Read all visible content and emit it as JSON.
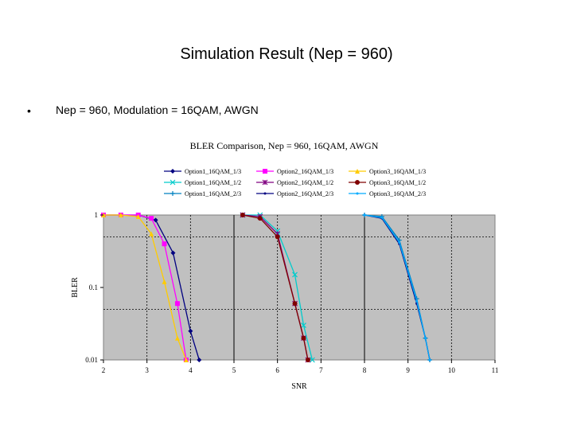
{
  "slide": {
    "title": "Simulation Result (Nep = 960)",
    "bullet_marker": "•",
    "bullet_text": "Nep = 960, Modulation = 16QAM, AWGN"
  },
  "chart_data": {
    "type": "line",
    "title": "BLER Comparison, Nep = 960, 16QAM, AWGN",
    "xlabel": "SNR",
    "ylabel": "BLER",
    "xlim": [
      2,
      11
    ],
    "ylim": [
      0.01,
      1
    ],
    "yscale": "log",
    "xticks": [
      "2",
      "3",
      "4",
      "5",
      "6",
      "7",
      "8",
      "9",
      "10",
      "11"
    ],
    "yticks": [
      "1",
      "0.1",
      "0.01"
    ],
    "grid": true,
    "background_color": "#c0c0c0",
    "legend_position": "top",
    "series": [
      {
        "name": "Option1_16QAM_1/3",
        "color": "#000080",
        "marker": "diamond",
        "x": [
          2.0,
          2.4,
          2.8,
          3.2,
          3.6,
          4.0,
          4.2
        ],
        "y": [
          1.0,
          1.0,
          1.0,
          0.85,
          0.3,
          0.025,
          0.01
        ]
      },
      {
        "name": "Option2_16QAM_1/3",
        "color": "#ff00ff",
        "marker": "square",
        "x": [
          2.0,
          2.4,
          2.8,
          3.1,
          3.4,
          3.7,
          3.9
        ],
        "y": [
          1.0,
          1.0,
          1.0,
          0.9,
          0.4,
          0.06,
          0.01
        ]
      },
      {
        "name": "Option3_16QAM_1/3",
        "color": "#ffcc00",
        "marker": "triangle",
        "x": [
          2.0,
          2.4,
          2.8,
          3.1,
          3.4,
          3.7,
          3.9
        ],
        "y": [
          1.0,
          1.0,
          0.95,
          0.55,
          0.12,
          0.02,
          0.01
        ]
      },
      {
        "name": "Option1_16QAM_1/2",
        "color": "#00cccc",
        "marker": "x",
        "x": [
          5.2,
          5.6,
          6.0,
          6.4,
          6.6,
          6.8
        ],
        "y": [
          1.0,
          1.0,
          0.6,
          0.15,
          0.03,
          0.01
        ]
      },
      {
        "name": "Option2_16QAM_1/2",
        "color": "#800080",
        "marker": "star",
        "x": [
          5.2,
          5.6,
          6.0,
          6.4,
          6.6,
          6.7
        ],
        "y": [
          1.0,
          0.95,
          0.55,
          0.06,
          0.02,
          0.01
        ]
      },
      {
        "name": "Option3_16QAM_1/2",
        "color": "#800000",
        "marker": "circle",
        "x": [
          5.2,
          5.6,
          6.0,
          6.4,
          6.6,
          6.7
        ],
        "y": [
          1.0,
          0.9,
          0.5,
          0.06,
          0.02,
          0.01
        ]
      },
      {
        "name": "Option1_16QAM_2/3",
        "color": "#0080c0",
        "marker": "plus",
        "x": [
          8.0,
          8.4,
          8.8,
          9.2,
          9.4,
          9.5
        ],
        "y": [
          1.0,
          0.95,
          0.45,
          0.07,
          0.02,
          0.01
        ]
      },
      {
        "name": "Option2_16QAM_2/3",
        "color": "#000080",
        "marker": "dot",
        "x": [
          8.0,
          8.4,
          8.8,
          9.2,
          9.4,
          9.5
        ],
        "y": [
          1.0,
          0.9,
          0.4,
          0.06,
          0.02,
          0.01
        ]
      },
      {
        "name": "Option3_16QAM_2/3",
        "color": "#00aaff",
        "marker": "dot",
        "x": [
          8.0,
          8.4,
          8.8,
          9.2,
          9.4,
          9.5
        ],
        "y": [
          1.0,
          0.92,
          0.42,
          0.065,
          0.02,
          0.01
        ]
      }
    ]
  }
}
